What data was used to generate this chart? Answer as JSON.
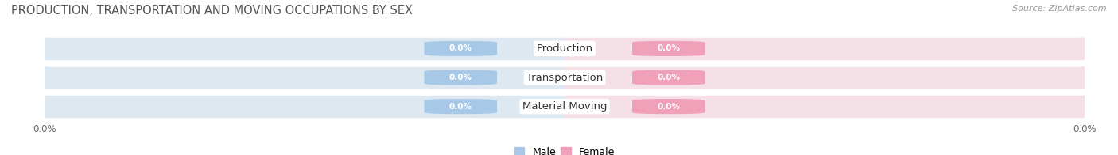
{
  "title": "PRODUCTION, TRANSPORTATION AND MOVING OCCUPATIONS BY SEX",
  "source": "Source: ZipAtlas.com",
  "categories": [
    "Production",
    "Transportation",
    "Material Moving"
  ],
  "male_values": [
    0.0,
    0.0,
    0.0
  ],
  "female_values": [
    0.0,
    0.0,
    0.0
  ],
  "male_color": "#a8c8e8",
  "female_color": "#f0a0b8",
  "bar_bg_male": "#dde8f0",
  "bar_bg_female": "#f5e0e8",
  "row_alt_colors": [
    "#eeeeee",
    "#e8e8e8",
    "#eeeeee"
  ],
  "bar_height": 0.72,
  "title_fontsize": 10.5,
  "source_fontsize": 8,
  "tick_fontsize": 8.5,
  "bar_label_fontsize": 7.5,
  "category_fontsize": 9.5,
  "legend_fontsize": 9,
  "figsize": [
    14.06,
    1.96
  ],
  "dpi": 100,
  "background_color": "#ffffff"
}
